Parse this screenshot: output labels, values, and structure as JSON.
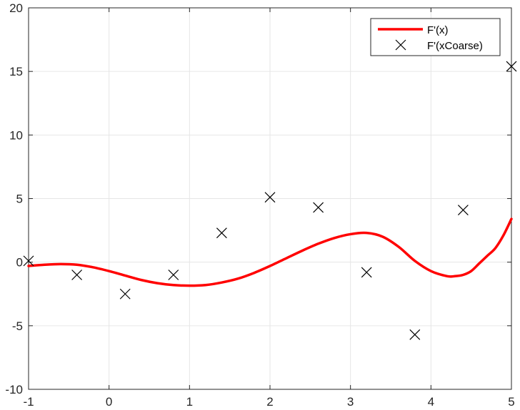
{
  "chart_data": {
    "type": "line",
    "title": "",
    "xlabel": "",
    "ylabel": "",
    "xlim": [
      -1,
      5
    ],
    "ylim": [
      -10,
      20
    ],
    "xticks": [
      -1,
      0,
      1,
      2,
      3,
      4,
      5
    ],
    "yticks": [
      -10,
      -5,
      0,
      5,
      10,
      15,
      20
    ],
    "grid": true,
    "legend_position": "top-right",
    "series": [
      {
        "name": "F'(x)",
        "style": "line",
        "color": "#ff0000",
        "x": [
          -1.0,
          -0.8,
          -0.6,
          -0.4,
          -0.2,
          0.0,
          0.2,
          0.4,
          0.6,
          0.8,
          1.0,
          1.2,
          1.4,
          1.6,
          1.8,
          2.0,
          2.2,
          2.4,
          2.6,
          2.8,
          3.0,
          3.2,
          3.4,
          3.6,
          3.8,
          4.0,
          4.2,
          4.3,
          4.4,
          4.5,
          4.6,
          4.7,
          4.8,
          4.9,
          5.0
        ],
        "y": [
          -0.3,
          -0.2,
          -0.15,
          -0.2,
          -0.4,
          -0.7,
          -1.05,
          -1.4,
          -1.65,
          -1.8,
          -1.85,
          -1.8,
          -1.6,
          -1.3,
          -0.85,
          -0.3,
          0.3,
          0.9,
          1.45,
          1.9,
          2.2,
          2.3,
          2.0,
          1.2,
          0.1,
          -0.7,
          -1.1,
          -1.1,
          -1.0,
          -0.7,
          -0.1,
          0.5,
          1.1,
          2.1,
          3.4
        ]
      },
      {
        "name": "F'(xCoarse)",
        "style": "marker",
        "marker": "x",
        "color": "#000000",
        "x": [
          -1.0,
          -0.4,
          0.2,
          0.8,
          1.4,
          2.0,
          2.6,
          3.2,
          3.8,
          4.4,
          5.0
        ],
        "y": [
          0.1,
          -1.0,
          -2.5,
          -1.0,
          2.3,
          5.1,
          4.3,
          -0.8,
          -5.7,
          4.1,
          15.4
        ]
      }
    ]
  }
}
